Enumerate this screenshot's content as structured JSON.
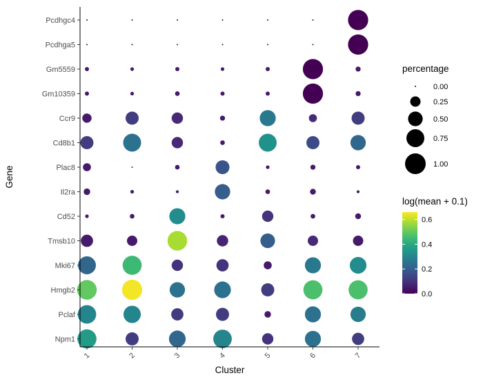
{
  "chart_data": {
    "type": "dotplot",
    "xlabel": "Cluster",
    "ylabel": "Gene",
    "clusters": [
      "1",
      "2",
      "3",
      "4",
      "5",
      "6",
      "7"
    ],
    "genes": [
      "Pcdhgc4",
      "Pcdhga5",
      "Gm5559",
      "Gm10359",
      "Ccr9",
      "Cd8b1",
      "Plac8",
      "Il2ra",
      "Cd52",
      "Tmsb10",
      "Mki67",
      "Hmgb2",
      "Pclaf",
      "Npm1"
    ],
    "percentage": [
      [
        0.0,
        0.0,
        0.0,
        0.0,
        0.0,
        0.0,
        0.95
      ],
      [
        0.0,
        0.0,
        0.0,
        0.0,
        0.0,
        0.0,
        0.95
      ],
      [
        0.04,
        0.03,
        0.04,
        0.03,
        0.04,
        0.95,
        0.06
      ],
      [
        0.04,
        0.03,
        0.05,
        0.04,
        0.04,
        0.95,
        0.06
      ],
      [
        0.2,
        0.4,
        0.3,
        0.06,
        0.6,
        0.15,
        0.4
      ],
      [
        0.4,
        0.75,
        0.3,
        0.05,
        0.75,
        0.4,
        0.55
      ],
      [
        0.15,
        0.0,
        0.05,
        0.45,
        0.03,
        0.06,
        0.04
      ],
      [
        0.1,
        0.03,
        0.02,
        0.55,
        0.05,
        0.08,
        0.02
      ],
      [
        0.03,
        0.05,
        0.6,
        0.04,
        0.3,
        0.05,
        0.08
      ],
      [
        0.35,
        0.25,
        0.9,
        0.3,
        0.5,
        0.25,
        0.25
      ],
      [
        0.75,
        0.85,
        0.3,
        0.35,
        0.15,
        0.6,
        0.65
      ],
      [
        0.9,
        0.95,
        0.55,
        0.65,
        0.4,
        0.85,
        0.85
      ],
      [
        0.8,
        0.7,
        0.35,
        0.4,
        0.1,
        0.6,
        0.55
      ],
      [
        0.85,
        0.4,
        0.65,
        0.8,
        0.3,
        0.6,
        0.35
      ]
    ],
    "log_mean": [
      [
        0.0,
        0.0,
        0.0,
        0.0,
        0.0,
        0.0,
        0.0
      ],
      [
        0.0,
        0.0,
        0.0,
        0.0,
        0.0,
        0.0,
        0.0
      ],
      [
        0.05,
        0.05,
        0.05,
        0.05,
        0.05,
        0.0,
        0.05
      ],
      [
        0.05,
        0.05,
        0.05,
        0.05,
        0.05,
        0.0,
        0.05
      ],
      [
        0.05,
        0.12,
        0.08,
        0.05,
        0.27,
        0.08,
        0.12
      ],
      [
        0.12,
        0.25,
        0.08,
        0.05,
        0.33,
        0.15,
        0.22
      ],
      [
        0.05,
        0.05,
        0.05,
        0.17,
        0.05,
        0.05,
        0.05
      ],
      [
        0.05,
        0.05,
        0.05,
        0.2,
        0.05,
        0.05,
        0.05
      ],
      [
        0.05,
        0.05,
        0.32,
        0.05,
        0.1,
        0.05,
        0.05
      ],
      [
        0.05,
        0.05,
        0.58,
        0.07,
        0.2,
        0.08,
        0.05
      ],
      [
        0.22,
        0.45,
        0.1,
        0.1,
        0.05,
        0.27,
        0.32
      ],
      [
        0.5,
        0.65,
        0.25,
        0.25,
        0.12,
        0.47,
        0.47
      ],
      [
        0.3,
        0.3,
        0.12,
        0.12,
        0.05,
        0.25,
        0.28
      ],
      [
        0.36,
        0.12,
        0.22,
        0.3,
        0.1,
        0.25,
        0.12
      ]
    ],
    "size_legend": {
      "title": "percentage",
      "breaks": [
        0.0,
        0.25,
        0.5,
        0.75,
        1.0
      ],
      "labels": [
        "0.00",
        "0.25",
        "0.50",
        "0.75",
        "1.00"
      ]
    },
    "color_legend": {
      "title": "log(mean + 0.1)",
      "breaks": [
        0.0,
        0.2,
        0.4,
        0.6
      ],
      "labels": [
        "0.0",
        "0.2",
        "0.4",
        "0.6"
      ],
      "range": [
        0.0,
        0.66
      ],
      "palette": "viridis",
      "colors": [
        "#440154",
        "#3b528b",
        "#21918c",
        "#5ec962",
        "#fde725"
      ]
    }
  }
}
